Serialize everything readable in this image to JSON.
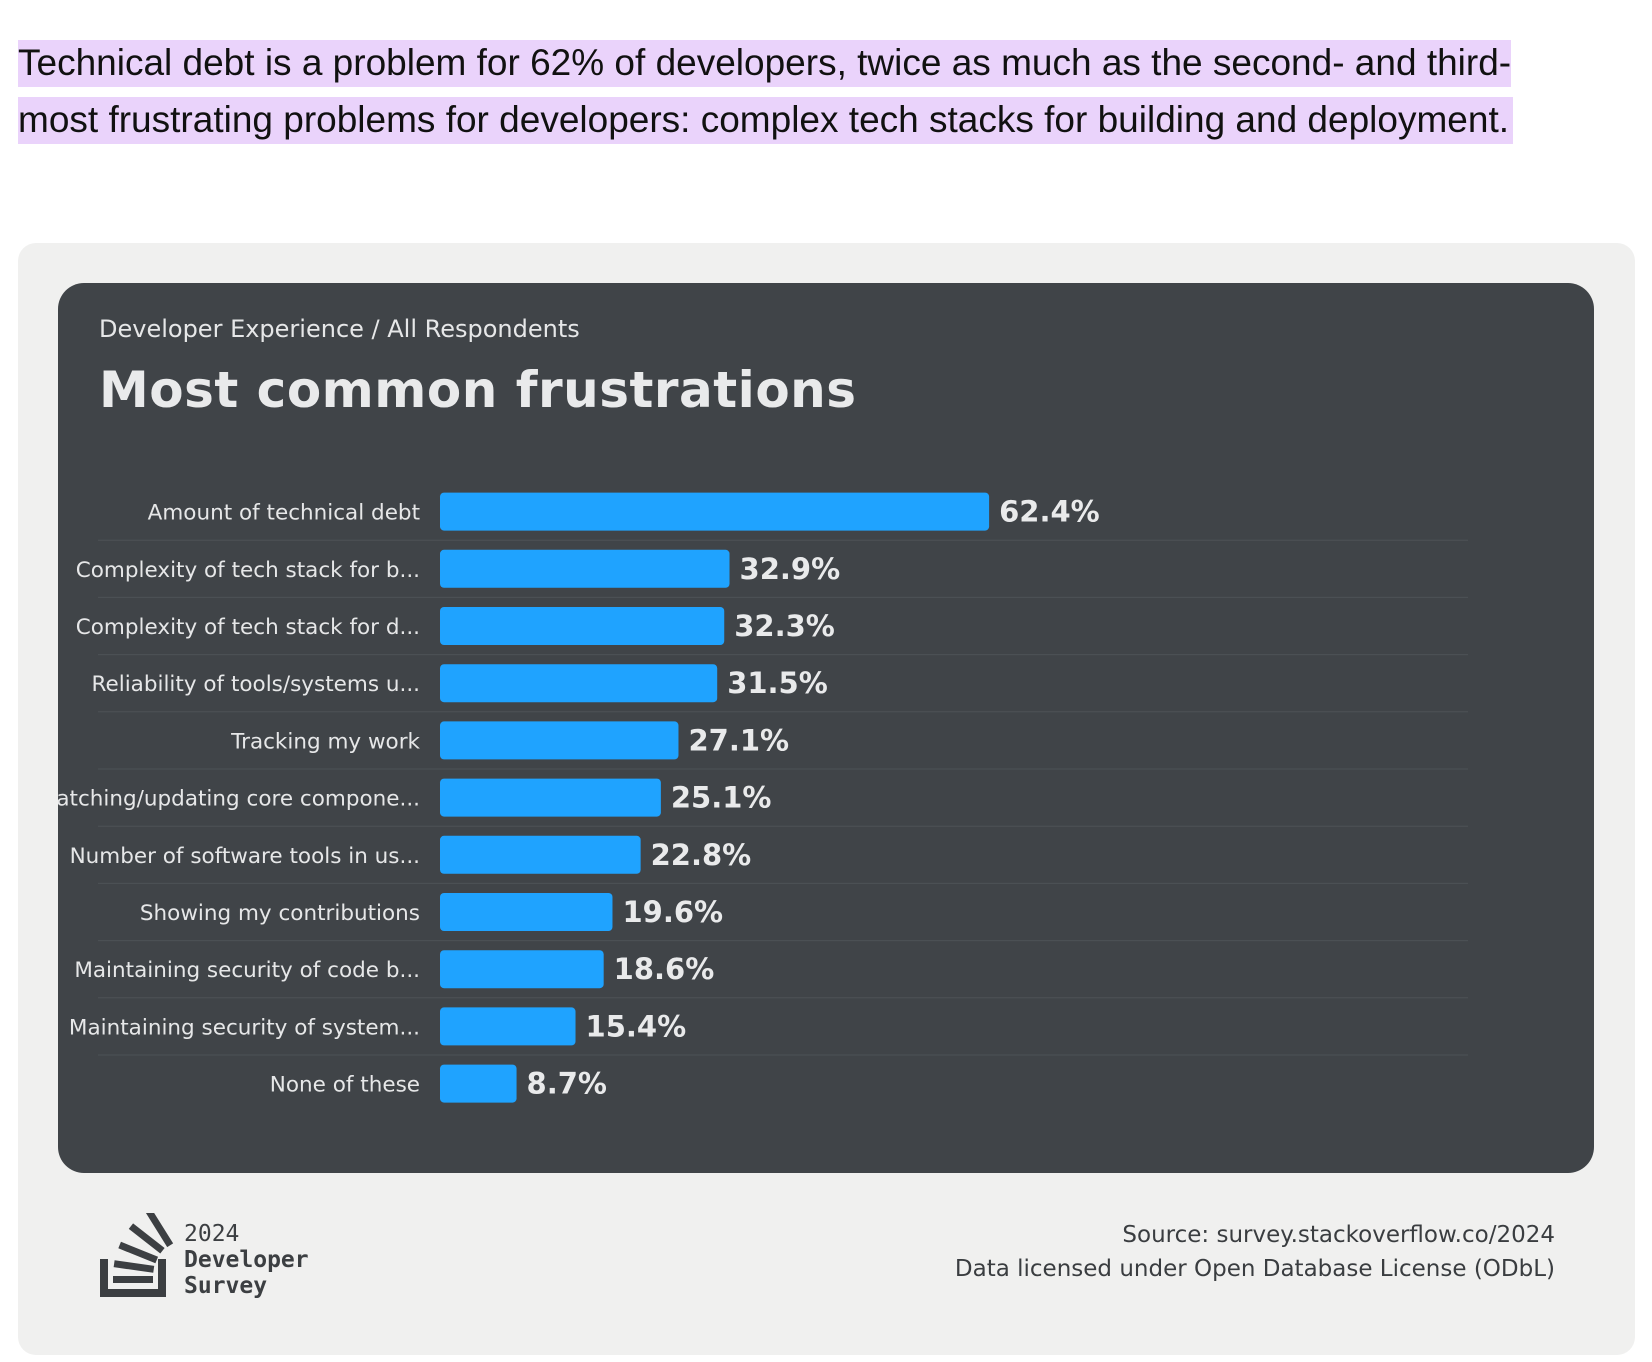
{
  "intro": {
    "text": "Technical debt is a problem for 62% of developers, twice as much as the second- and third-most frustrating problems for developers: complex tech stacks for building and deployment."
  },
  "card": {
    "breadcrumb": "Developer Experience / All Respondents",
    "title": "Most common frustrations",
    "logo": {
      "year": "2024",
      "line1": "Developer",
      "line2": "Survey"
    },
    "source": "Source: survey.stackoverflow.co/2024",
    "license": "Data licensed under Open Database License (ODbL)"
  },
  "colors": {
    "bar": "#1fa3ff",
    "panel": "#404448",
    "outer": "#f0f0ef",
    "highlight": "#ead3fb"
  },
  "chart_data": {
    "type": "bar",
    "orientation": "horizontal",
    "title": "Most common frustrations",
    "subtitle": "Developer Experience / All Respondents",
    "categories": [
      "Amount of technical debt",
      "Complexity of tech stack for b...",
      "Complexity of tech stack for d...",
      "Reliability of tools/systems u...",
      "Tracking my work",
      "Patching/updating core compone...",
      "Number of software tools in us...",
      "Showing my contributions",
      "Maintaining security of code b...",
      "Maintaining security of system...",
      "None of these"
    ],
    "values": [
      62.4,
      32.9,
      32.3,
      31.5,
      27.1,
      25.1,
      22.8,
      19.6,
      18.6,
      15.4,
      8.7
    ],
    "value_labels": [
      "62.4%",
      "32.9%",
      "32.3%",
      "31.5%",
      "27.1%",
      "25.1%",
      "22.8%",
      "19.6%",
      "18.6%",
      "15.4%",
      "8.7%"
    ],
    "unit": "%",
    "xlim": [
      0,
      100
    ],
    "xlabel": "",
    "ylabel": "",
    "grid": false,
    "legend": "none"
  }
}
